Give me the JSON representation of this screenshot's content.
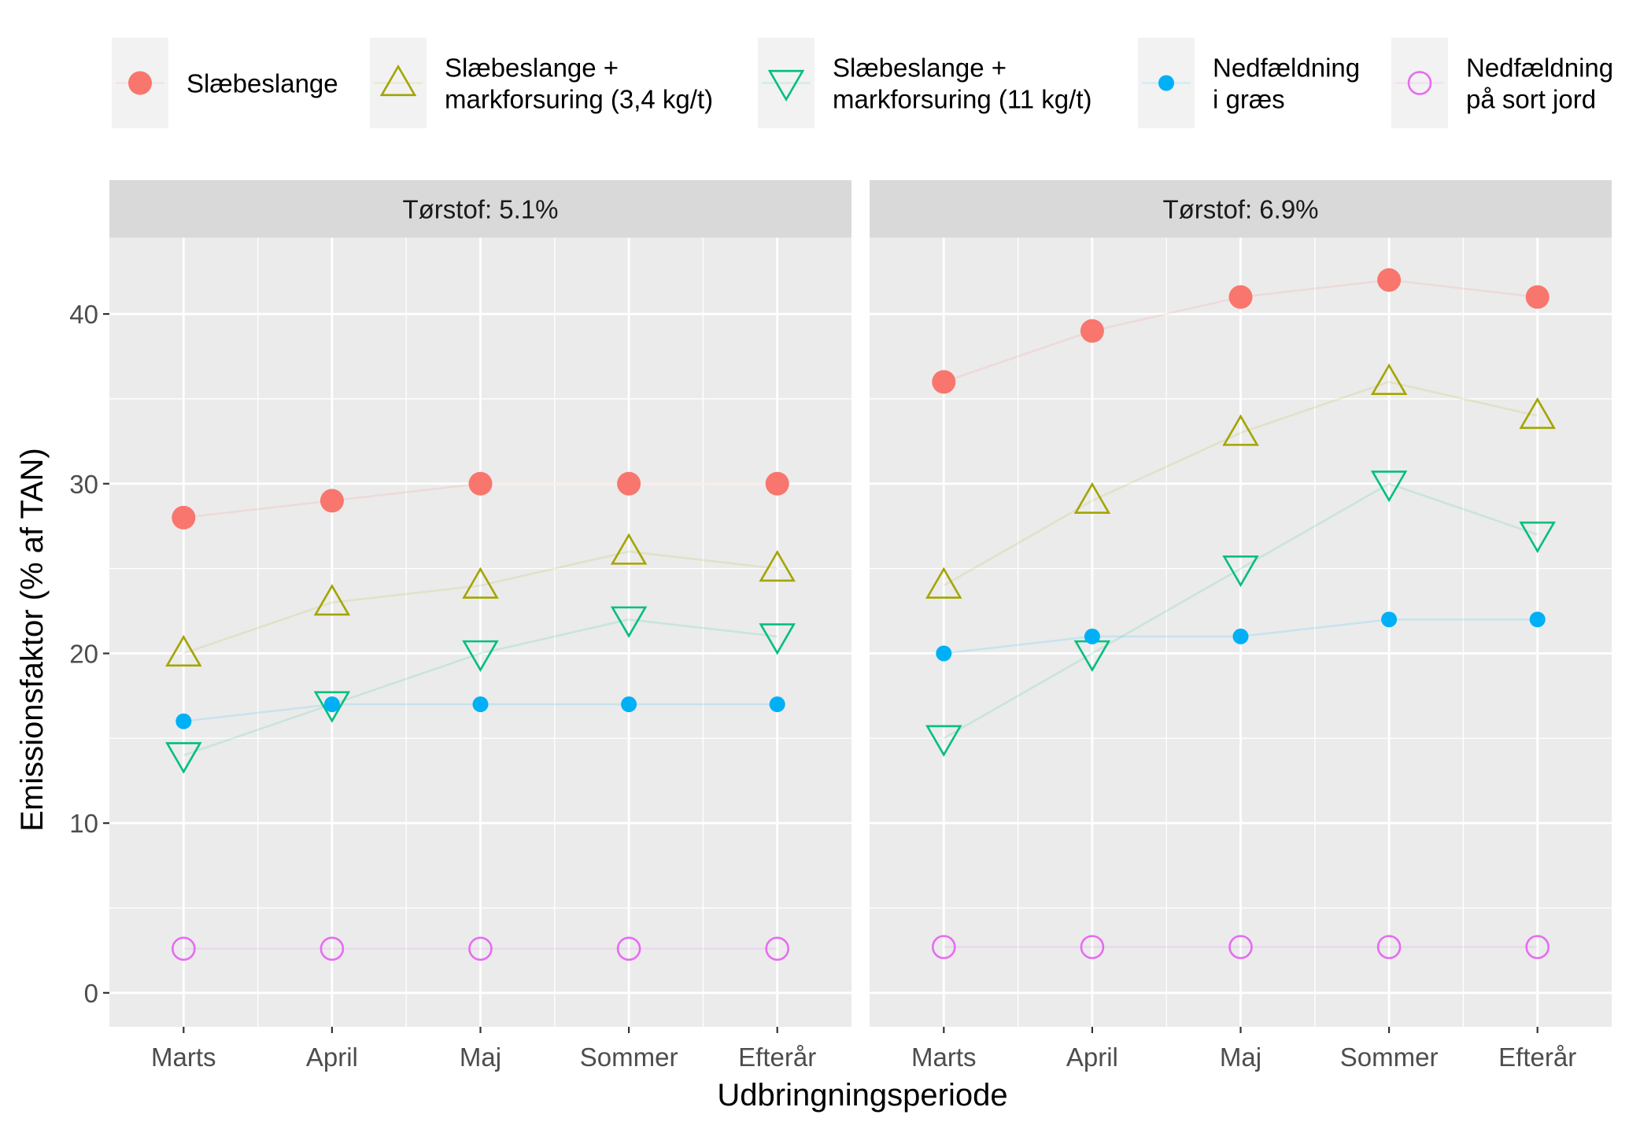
{
  "chart_data": {
    "type": "scatter",
    "xlabel": "Udbringningsperiode",
    "ylabel": "Emissionsfaktor (% af TAN)",
    "categories": [
      "Marts",
      "April",
      "Maj",
      "Sommer",
      "Efterår"
    ],
    "ylim": [
      -2,
      44.5
    ],
    "yticks": [
      0,
      10,
      20,
      30,
      40
    ],
    "grid": true,
    "legend_position": "top",
    "legend": [
      {
        "label_lines": [
          "Slæbeslange"
        ],
        "shape": "circle-filled",
        "color": "#F8766D"
      },
      {
        "label_lines": [
          "Slæbeslange +",
          "markforsuring (3,4 kg/t)"
        ],
        "shape": "triangle-up-open",
        "color": "#A3A500"
      },
      {
        "label_lines": [
          "Slæbeslange +",
          "markforsuring (11 kg/t)"
        ],
        "shape": "triangle-down-open",
        "color": "#00BF7D"
      },
      {
        "label_lines": [
          "Nedfældning",
          "i græs"
        ],
        "shape": "circle-filled-small",
        "color": "#00B0F6"
      },
      {
        "label_lines": [
          "Nedfældning",
          "på sort jord"
        ],
        "shape": "circle-open",
        "color": "#E76BF3"
      }
    ],
    "panels": [
      {
        "title": "Tørstof: 5.1%",
        "series": [
          {
            "name": "Slæbeslange",
            "values": [
              28,
              29,
              30,
              30,
              30
            ]
          },
          {
            "name": "Slæbeslange + markforsuring (3,4 kg/t)",
            "values": [
              20,
              23,
              24,
              26,
              25
            ]
          },
          {
            "name": "Slæbeslange + markforsuring (11 kg/t)",
            "values": [
              14,
              17,
              20,
              22,
              21
            ]
          },
          {
            "name": "Nedfældning i græs",
            "values": [
              16,
              17,
              17,
              17,
              17
            ]
          },
          {
            "name": "Nedfældning på sort jord",
            "values": [
              2.6,
              2.6,
              2.6,
              2.6,
              2.6
            ]
          }
        ]
      },
      {
        "title": "Tørstof: 6.9%",
        "series": [
          {
            "name": "Slæbeslange",
            "values": [
              36,
              39,
              41,
              42,
              41
            ]
          },
          {
            "name": "Slæbeslange + markforsuring (3,4 kg/t)",
            "values": [
              24,
              29,
              33,
              36,
              34
            ]
          },
          {
            "name": "Slæbeslange + markforsuring (11 kg/t)",
            "values": [
              15,
              20,
              25,
              30,
              27
            ]
          },
          {
            "name": "Nedfældning i græs",
            "values": [
              20,
              21,
              21,
              22,
              22
            ]
          },
          {
            "name": "Nedfældning på sort jord",
            "values": [
              2.7,
              2.7,
              2.7,
              2.7,
              2.7
            ]
          }
        ]
      }
    ]
  }
}
